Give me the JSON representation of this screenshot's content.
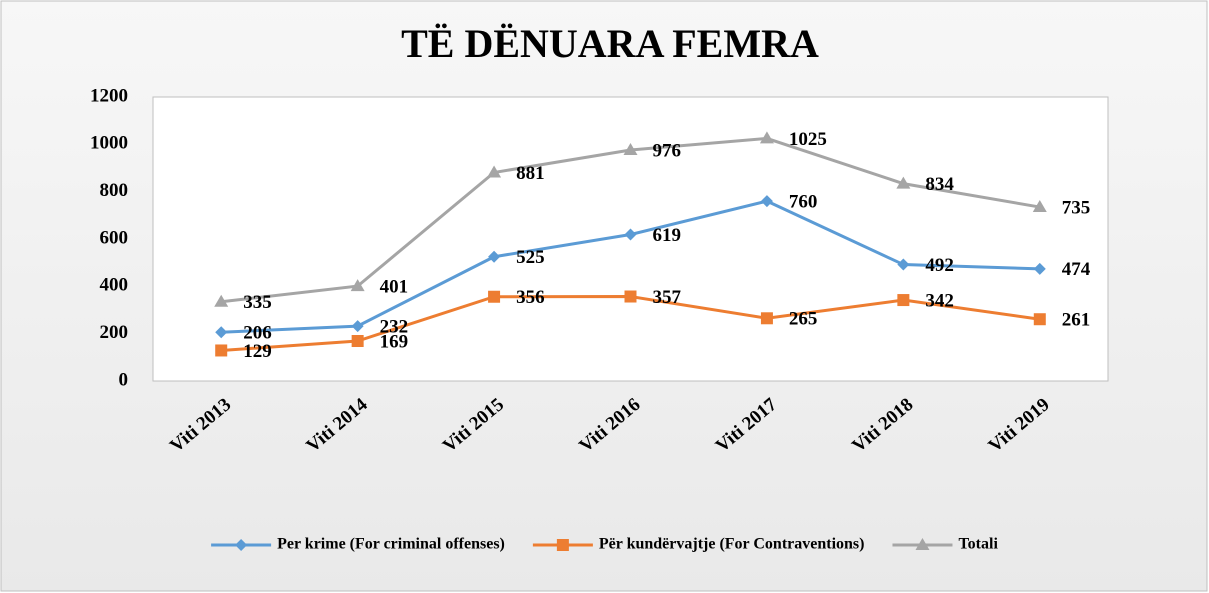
{
  "chart_data": {
    "type": "line",
    "title": "TË DËNUARA FEMRA",
    "categories": [
      "Viti 2013",
      "Viti 2014",
      "Viti 2015",
      "Viti 2016",
      "Viti 2017",
      "Viti 2018",
      "Viti 2019"
    ],
    "series": [
      {
        "name": "Per krime (For criminal offenses)",
        "color": "#5b9bd5",
        "marker": "diamond",
        "values": [
          206,
          232,
          525,
          619,
          760,
          492,
          474
        ]
      },
      {
        "name": "Për kundërvajtje (For Contraventions)",
        "color": "#ed7d31",
        "marker": "square",
        "values": [
          129,
          169,
          356,
          357,
          265,
          342,
          261
        ]
      },
      {
        "name": "Totali",
        "color": "#a5a5a5",
        "marker": "triangle",
        "values": [
          335,
          401,
          881,
          976,
          1025,
          834,
          735
        ]
      }
    ],
    "ylim": [
      0,
      1200
    ],
    "yticks": [
      0,
      200,
      400,
      600,
      800,
      1000,
      1200
    ],
    "grid": false,
    "legend": "bottom"
  }
}
